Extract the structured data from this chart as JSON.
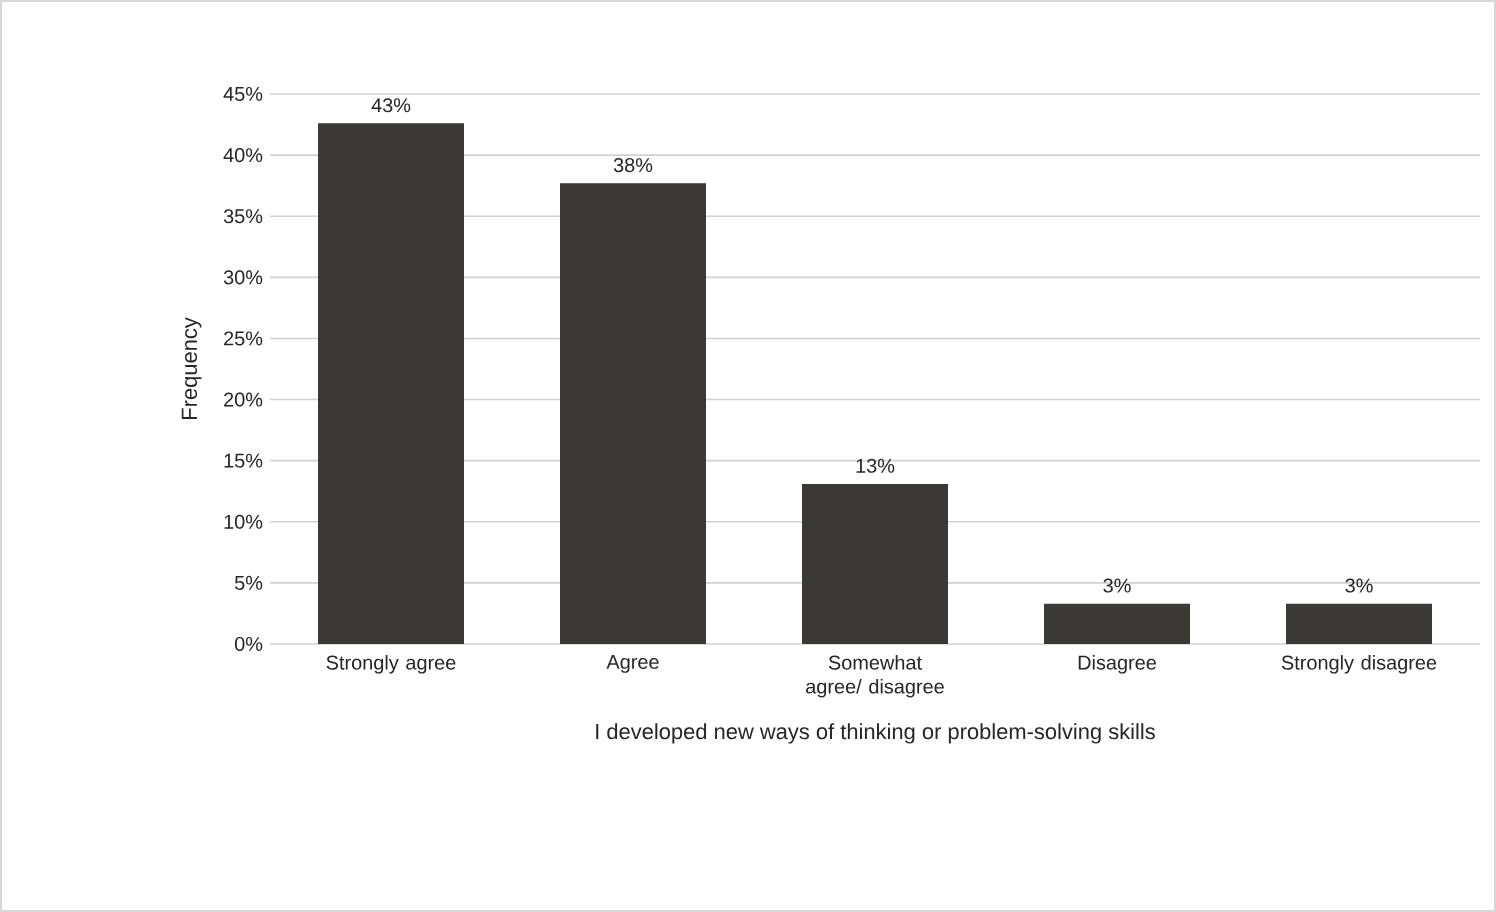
{
  "chart_data": {
    "type": "bar",
    "xlabel": "I developed new ways of thinking or problem-solving skills",
    "ylabel": "Frequency",
    "categories": [
      "Strongly agree",
      "Agree",
      "Somewhat agree/ disagree",
      "Disagree",
      "Strongly disagree"
    ],
    "values": [
      42.6,
      37.7,
      13.1,
      3.3,
      3.3
    ],
    "value_labels": [
      "43%",
      "38%",
      "13%",
      "3%",
      "3%"
    ],
    "color": "#3b3935",
    "ylim": [
      0,
      45
    ],
    "yticks": [
      {
        "value": 0,
        "label": "0%"
      },
      {
        "value": 5,
        "label": "5%"
      },
      {
        "value": 10,
        "label": "10%"
      },
      {
        "value": 15,
        "label": "15%"
      },
      {
        "value": 20,
        "label": "20%"
      },
      {
        "value": 25,
        "label": "25%"
      },
      {
        "value": 30,
        "label": "30%"
      },
      {
        "value": 35,
        "label": "35%"
      },
      {
        "value": 40,
        "label": "40%"
      },
      {
        "value": 45,
        "label": "45%"
      }
    ],
    "grid": "y"
  }
}
